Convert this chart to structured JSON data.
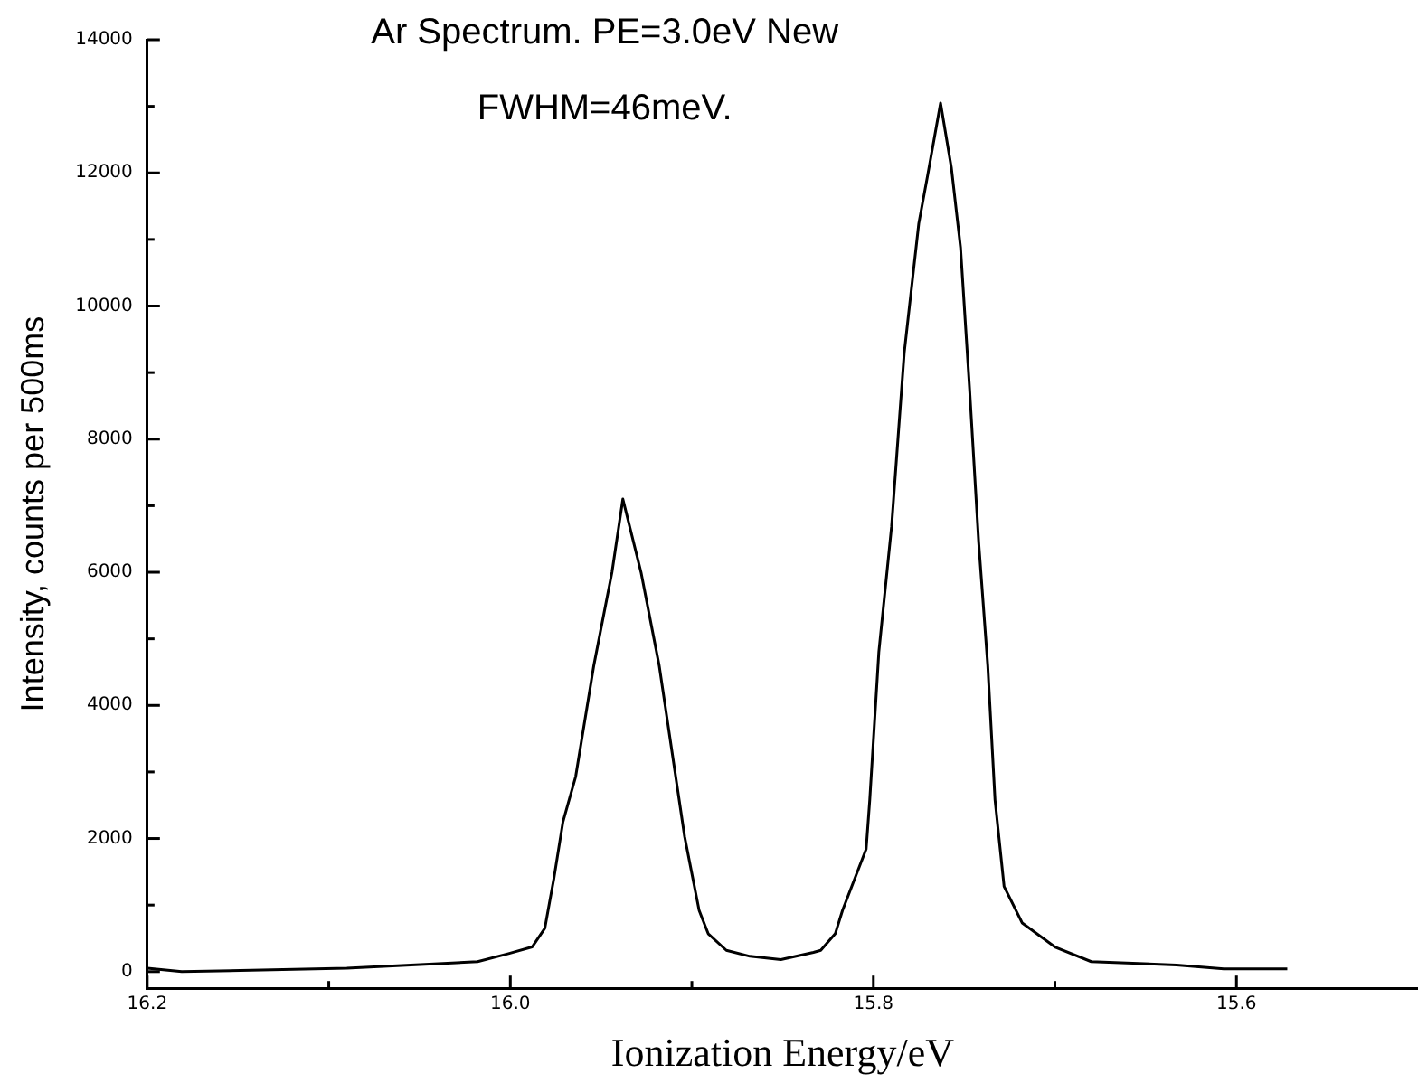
{
  "chart_data": {
    "type": "line",
    "title": "Ar Spectrum. PE=3.0eV New",
    "subtitle": "FWHM=46meV.",
    "xlabel": "Ionization Energy/eV",
    "ylabel": "Intensity, counts per 500ms",
    "xlim": [
      16.2,
      15.5
    ],
    "xticks": [
      16.2,
      {
        "value": 16.1,
        "label": null
      },
      {
        "value": 16.0,
        "label": "16.0"
      },
      {
        "value": 15.9,
        "label": null
      },
      15.8,
      {
        "value": 15.7,
        "label": null
      },
      15.6
    ],
    "ylim": [
      -250,
      14000
    ],
    "yticks": [
      0,
      {
        "value": 1000,
        "label": null
      },
      2000,
      {
        "value": 3000,
        "label": null
      },
      4000,
      {
        "value": 5000,
        "label": null
      },
      6000,
      {
        "value": 7000,
        "label": null
      },
      8000,
      {
        "value": 9000,
        "label": null
      },
      10000,
      {
        "value": 11000,
        "label": null
      },
      12000,
      {
        "value": 13000,
        "label": null
      },
      14000
    ],
    "grid": false,
    "legend": false,
    "marker": "none",
    "line_style": "solid",
    "series": [
      {
        "color": "#000000",
        "x": [
          16.2,
          16.181,
          16.09,
          16.018,
          16.001,
          15.988,
          15.981,
          15.976,
          15.971,
          15.964,
          15.954,
          15.944,
          15.938,
          15.928,
          15.918,
          15.904,
          15.896,
          15.891,
          15.881,
          15.868,
          15.851,
          15.833,
          15.829,
          15.821,
          15.817,
          15.804,
          15.802,
          15.797,
          15.79,
          15.783,
          15.775,
          15.77,
          15.763,
          15.757,
          15.752,
          15.747,
          15.742,
          15.737,
          15.733,
          15.728,
          15.718,
          15.7,
          15.68,
          15.633,
          15.607,
          15.572
        ],
        "values": [
          50,
          0,
          50,
          150,
          270,
          370,
          650,
          1400,
          2250,
          2930,
          4600,
          6000,
          7100,
          6000,
          4600,
          2030,
          920,
          570,
          320,
          230,
          180,
          290,
          320,
          570,
          920,
          1840,
          2580,
          4800,
          6680,
          9300,
          11240,
          11980,
          13050,
          12070,
          10880,
          8750,
          6450,
          4600,
          2580,
          1280,
          730,
          370,
          150,
          100,
          40,
          40
        ]
      }
    ]
  }
}
